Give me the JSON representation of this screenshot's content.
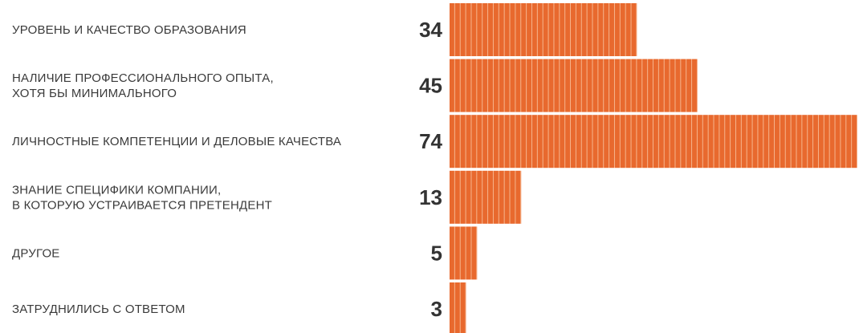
{
  "chart_data": {
    "type": "bar",
    "orientation": "horizontal",
    "categories": [
      [
        "УРОВЕНЬ И КАЧЕСТВО ОБРАЗОВАНИЯ"
      ],
      [
        "НАЛИЧИЕ ПРОФЕССИОНАЛЬНОГО ОПЫТА,",
        "ХОТЯ БЫ МИНИМАЛЬНОГО"
      ],
      [
        "ЛИЧНОСТНЫЕ КОМПЕТЕНЦИИ И ДЕЛОВЫЕ КАЧЕСТВА"
      ],
      [
        "ЗНАНИЕ СПЕЦИФИКИ КОМПАНИИ,",
        "В КОТОРУЮ УСТРАИВАЕТСЯ ПРЕТЕНДЕНТ"
      ],
      [
        "ДРУГОЕ"
      ],
      [
        "ЗАТРУДНИЛИСЬ С ОТВЕТОМ"
      ]
    ],
    "values": [
      34,
      45,
      74,
      13,
      5,
      3
    ],
    "color": "#e8692e"
  }
}
